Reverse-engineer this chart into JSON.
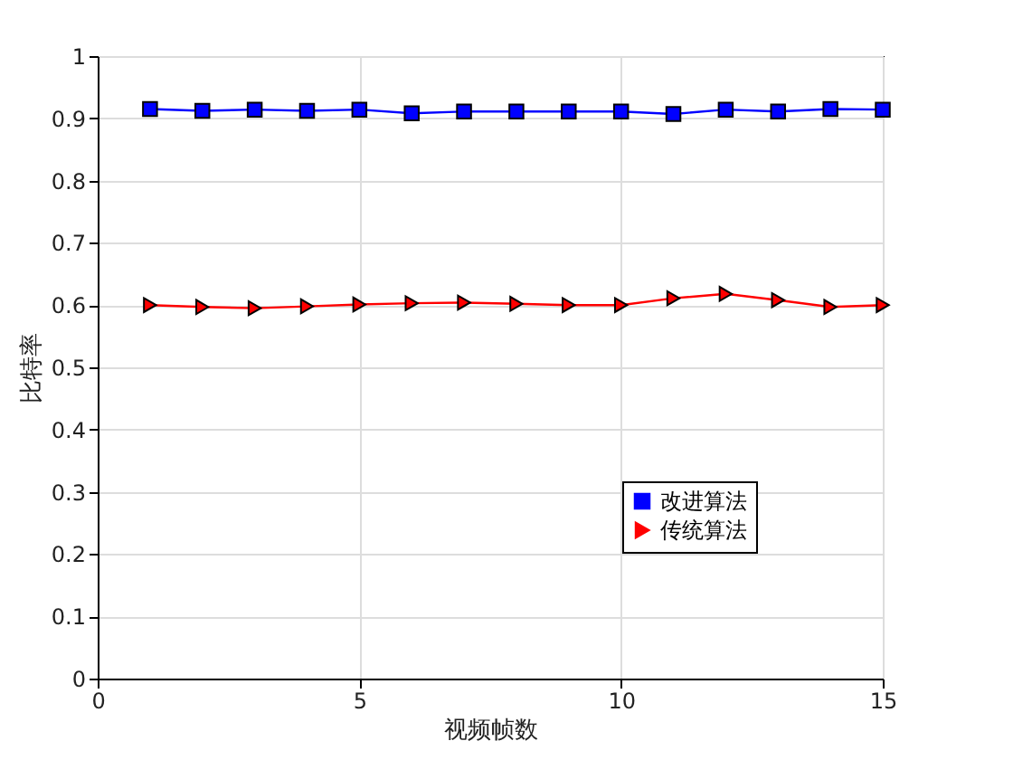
{
  "chart_data": {
    "type": "line",
    "xlabel": "视频帧数",
    "ylabel": "比特率",
    "x": [
      1,
      2,
      3,
      4,
      5,
      6,
      7,
      8,
      9,
      10,
      11,
      12,
      13,
      14,
      15
    ],
    "series": [
      {
        "name": "改进算法",
        "color": "#0000ff",
        "marker": "square",
        "values": [
          0.915,
          0.912,
          0.914,
          0.912,
          0.914,
          0.908,
          0.911,
          0.911,
          0.911,
          0.911,
          0.907,
          0.914,
          0.911,
          0.915,
          0.914
        ]
      },
      {
        "name": "传统算法",
        "color": "#ff0000",
        "marker": "triangle",
        "values": [
          0.6,
          0.597,
          0.595,
          0.598,
          0.601,
          0.603,
          0.604,
          0.602,
          0.6,
          0.6,
          0.611,
          0.618,
          0.608,
          0.597,
          0.6
        ]
      }
    ],
    "xlim": [
      0,
      15
    ],
    "xticks": [
      0,
      5,
      10,
      15
    ],
    "ylim": [
      0,
      1
    ],
    "yticks": [
      0,
      0.1,
      0.2,
      0.3,
      0.4,
      0.5,
      0.6,
      0.7,
      0.8,
      0.9,
      1
    ],
    "grid": true,
    "legend": "bottom right",
    "line_style": "solid"
  }
}
